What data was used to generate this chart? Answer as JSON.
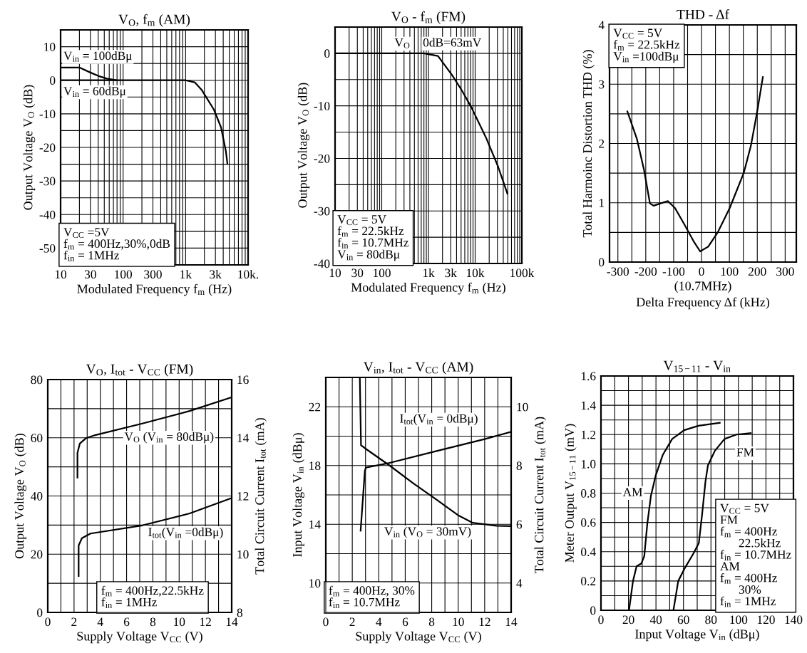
{
  "chart_data": [
    {
      "type": "line",
      "title": "V$_{O}$, f$_{m}$ (AM)",
      "xlabel": "Modulated Frequency f$_{m}$ (Hz)",
      "ylabel": "Output Voltage V$_{O}$ (dB)",
      "log": "x",
      "grid": true,
      "xlim": [
        10,
        10000
      ],
      "ylim": [
        -55,
        15
      ],
      "xticks": [
        {
          "value": 10,
          "label": "10"
        },
        {
          "value": 20,
          "label": null
        },
        {
          "value": 30,
          "label": "30"
        },
        {
          "value": 40,
          "label": null
        },
        {
          "value": 50,
          "label": null
        },
        {
          "value": 60,
          "label": null
        },
        {
          "value": 70,
          "label": null
        },
        {
          "value": 80,
          "label": null
        },
        {
          "value": 90,
          "label": null
        },
        {
          "value": 100,
          "label": "100"
        },
        {
          "value": 200,
          "label": null
        },
        {
          "value": 300,
          "label": "300"
        },
        {
          "value": 400,
          "label": null
        },
        {
          "value": 500,
          "label": null
        },
        {
          "value": 600,
          "label": null
        },
        {
          "value": 700,
          "label": null
        },
        {
          "value": 800,
          "label": null
        },
        {
          "value": 900,
          "label": null
        },
        {
          "value": 1000,
          "label": "1k"
        },
        {
          "value": 2000,
          "label": null
        },
        {
          "value": 3000,
          "label": "3k"
        },
        {
          "value": 4000,
          "label": null
        },
        {
          "value": 5000,
          "label": null
        },
        {
          "value": 6000,
          "label": null
        },
        {
          "value": 7000,
          "label": null
        },
        {
          "value": 8000,
          "label": null
        },
        {
          "value": 9000,
          "label": null
        },
        {
          "value": 10000,
          "label": "10k."
        }
      ],
      "yticks": [
        {
          "value": -50,
          "label": "-50"
        },
        {
          "value": -45,
          "label": null
        },
        {
          "value": -40,
          "label": "-40"
        },
        {
          "value": -35,
          "label": null
        },
        {
          "value": -30,
          "label": "-30"
        },
        {
          "value": -25,
          "label": null
        },
        {
          "value": -20,
          "label": "-20"
        },
        {
          "value": -15,
          "label": null
        },
        {
          "value": -10,
          "label": "-10"
        },
        {
          "value": -5,
          "label": null
        },
        {
          "value": 0,
          "label": "0"
        },
        {
          "value": 5,
          "label": null
        },
        {
          "value": 10,
          "label": "10"
        }
      ],
      "series": [
        {
          "name": "V$_{in}$ = 100dBμ",
          "color": "#000000",
          "x": [
            10,
            20,
            30,
            40,
            55,
            78
          ],
          "values": [
            3.8,
            3.8,
            2.3,
            1.3,
            0.5,
            0
          ]
        },
        {
          "name": "V$_{in}$ = 60dBμ",
          "color": "#000000",
          "x": [
            10,
            1000,
            1400,
            1828,
            2830,
            3690,
            4400,
            4670
          ],
          "values": [
            0,
            0,
            -0.6,
            -3,
            -8.7,
            -14,
            -21,
            -24.9
          ]
        }
      ],
      "annotations": [
        "V$_{CC}$ =5V\nf$_{m}$ = 400Hz,30%,0dB\nf$_{in}$ = 1MHz"
      ]
    },
    {
      "type": "line",
      "title": "V$_{O}$ - f$_{m}$ (FM)",
      "xlabel": "Modulated Frequency f$_{m}$ (Hz)",
      "ylabel": "Output Voltage V$_{O}$ (dB)",
      "log": "x",
      "grid": true,
      "xlim": [
        10,
        100000
      ],
      "ylim": [
        -40,
        5
      ],
      "xticks": [
        {
          "value": 10,
          "label": "10"
        },
        {
          "value": 20,
          "label": null
        },
        {
          "value": 30,
          "label": "30"
        },
        {
          "value": 40,
          "label": null
        },
        {
          "value": 50,
          "label": null
        },
        {
          "value": 60,
          "label": null
        },
        {
          "value": 70,
          "label": null
        },
        {
          "value": 80,
          "label": null
        },
        {
          "value": 90,
          "label": null
        },
        {
          "value": 100,
          "label": "100"
        },
        {
          "value": 200,
          "label": null
        },
        {
          "value": 300,
          "label": null
        },
        {
          "value": 400,
          "label": null
        },
        {
          "value": 500,
          "label": null
        },
        {
          "value": 600,
          "label": null
        },
        {
          "value": 700,
          "label": null
        },
        {
          "value": 800,
          "label": null
        },
        {
          "value": 900,
          "label": null
        },
        {
          "value": 1000,
          "label": "1k"
        },
        {
          "value": 2000,
          "label": null
        },
        {
          "value": 3000,
          "label": "3k"
        },
        {
          "value": 4000,
          "label": null
        },
        {
          "value": 5000,
          "label": null
        },
        {
          "value": 6000,
          "label": null
        },
        {
          "value": 7000,
          "label": null
        },
        {
          "value": 8000,
          "label": null
        },
        {
          "value": 9000,
          "label": null
        },
        {
          "value": 10000,
          "label": "10k"
        },
        {
          "value": 20000,
          "label": null
        },
        {
          "value": 30000,
          "label": null
        },
        {
          "value": 40000,
          "label": null
        },
        {
          "value": 50000,
          "label": null
        },
        {
          "value": 60000,
          "label": null
        },
        {
          "value": 70000,
          "label": null
        },
        {
          "value": 80000,
          "label": null
        },
        {
          "value": 90000,
          "label": null
        },
        {
          "value": 100000,
          "label": "100k"
        }
      ],
      "yticks": [
        {
          "value": -40,
          "label": "-40"
        },
        {
          "value": -35,
          "label": null
        },
        {
          "value": -30,
          "label": "-30"
        },
        {
          "value": -25,
          "label": null
        },
        {
          "value": -20,
          "label": "-20"
        },
        {
          "value": -15,
          "label": null
        },
        {
          "value": -10,
          "label": "-10"
        },
        {
          "value": -5,
          "label": null
        },
        {
          "value": 0,
          "label": "0"
        }
      ],
      "series": [
        {
          "name": "V$_{O}$",
          "color": "#000000",
          "x": [
            10,
            790,
            1600,
            3240,
            5220,
            8330,
            17000,
            30800,
            49000
          ],
          "values": [
            0,
            0,
            -0.5,
            -4.2,
            -7.1,
            -10.3,
            -16,
            -21.5,
            -26.7
          ]
        }
      ],
      "annotations": [
        "0dB=63mV",
        "V$_{CC}$ = 5V\nf$_{m}$ = 22.5kHz\nf$_{in}$ = 10.7MHz\nV$_{in}$ = 80dBμ"
      ]
    },
    {
      "type": "line",
      "title": "THD - Δf",
      "xlabel": "(10.7MHz)\nDelta Frequency Δf (kHz)",
      "ylabel": "Total Harmoinc Distortion THD (%)",
      "grid": true,
      "xlim": [
        -330,
        340
      ],
      "ylim": [
        0,
        4
      ],
      "xticks": [
        {
          "value": -300,
          "label": "-300"
        },
        {
          "value": -250,
          "label": null
        },
        {
          "value": -200,
          "label": "-200"
        },
        {
          "value": -150,
          "label": null
        },
        {
          "value": -100,
          "label": "-100"
        },
        {
          "value": -50,
          "label": null
        },
        {
          "value": 0,
          "label": "0"
        },
        {
          "value": 50,
          "label": null
        },
        {
          "value": 100,
          "label": "100"
        },
        {
          "value": 150,
          "label": null
        },
        {
          "value": 200,
          "label": "200"
        },
        {
          "value": 250,
          "label": null
        },
        {
          "value": 300,
          "label": "300"
        }
      ],
      "yticks": [
        {
          "value": 0,
          "label": "0"
        },
        {
          "value": 0.5,
          "label": null
        },
        {
          "value": 1,
          "label": "1"
        },
        {
          "value": 1.5,
          "label": null
        },
        {
          "value": 2,
          "label": "2"
        },
        {
          "value": 2.5,
          "label": null
        },
        {
          "value": 3,
          "label": "3"
        },
        {
          "value": 3.5,
          "label": null
        },
        {
          "value": 4,
          "label": "4"
        }
      ],
      "series": [
        {
          "color": "#000000",
          "x": [
            -266,
            -232,
            -206,
            -185,
            -172,
            -147,
            -121,
            -95,
            -61,
            -27,
            -5,
            24,
            58,
            101,
            152,
            177,
            199,
            220
          ],
          "values": [
            2.54,
            2.08,
            1.55,
            0.99,
            0.95,
            0.99,
            1.03,
            0.91,
            0.63,
            0.34,
            0.18,
            0.26,
            0.5,
            0.91,
            1.51,
            1.96,
            2.52,
            3.12
          ]
        }
      ],
      "annotations": [
        "V$_{CC}$ = 5V\nf$_{m}$ = 22.5kHz\nV$_{in}$ =100dBμ"
      ]
    },
    {
      "type": "line",
      "title": "V$_{O}$, I$_{tot}$ - V$_{CC}$ (FM)",
      "xlabel": "Supply Voltage V$_{CC}$ (V)",
      "ylabel": "Output Voltage V$_{O}$ (dB)",
      "y2label": "Total Circuit Current I$_{tot}$ (mA)",
      "grid": true,
      "xlim": [
        0,
        14
      ],
      "ylim": [
        0,
        80
      ],
      "y2lim": [
        8,
        16
      ],
      "xticks": [
        0,
        {
          "value": 1,
          "label": null
        },
        2,
        {
          "value": 3,
          "label": null
        },
        4,
        {
          "value": 5,
          "label": null
        },
        6,
        {
          "value": 7,
          "label": null
        },
        8,
        {
          "value": 9,
          "label": null
        },
        10,
        {
          "value": 11,
          "label": null
        },
        12,
        {
          "value": 13,
          "label": null
        },
        14
      ],
      "yticks": [
        0,
        {
          "value": 10,
          "label": null
        },
        20,
        {
          "value": 30,
          "label": null
        },
        40,
        {
          "value": 50,
          "label": null
        },
        60,
        {
          "value": 70,
          "label": null
        },
        80
      ],
      "y2ticks": [
        8,
        10,
        12,
        14,
        16
      ],
      "series": [
        {
          "name": "V$_{O}$ (V$_{in}$ = 80dBμ)",
          "color": "#000000",
          "x": [
            2.26,
            2.26,
            2.44,
            2.89,
            3.6,
            7.2,
            10.8,
            14
          ],
          "values": [
            46.3,
            54.8,
            58,
            59.8,
            60.9,
            64.9,
            69.2,
            73.9
          ]
        },
        {
          "name": "I$_{tot}$(V$_{in}$ =0dBμ)",
          "color": "#000000",
          "axis": "y2",
          "x": [
            2.35,
            2.35,
            2.6,
            3.25,
            7.2,
            10.8,
            14
          ],
          "values": [
            9.25,
            10.3,
            10.55,
            10.71,
            10.99,
            11.4,
            11.93
          ]
        }
      ],
      "annotations": [
        "f$_{m}$ = 400Hz,22.5kHz\nf$_{in}$ = 1MHz"
      ]
    },
    {
      "type": "line",
      "title": "V$_{in}$, I$_{tot}$ - V$_{CC}$ (AM)",
      "xlabel": "Supply Voltage V$_{CC}$ (V)",
      "ylabel": "Input Voltage V$_{in}$ (dBμ)",
      "y2label": "Total Circuit Current I$_{tot}$ (mA)",
      "grid": true,
      "xlim": [
        0,
        14
      ],
      "ylim": [
        8,
        24
      ],
      "y2lim": [
        3,
        11
      ],
      "xticks": [
        0,
        {
          "value": 1,
          "label": null
        },
        2,
        {
          "value": 3,
          "label": null
        },
        4,
        {
          "value": 5,
          "label": null
        },
        6,
        {
          "value": 7,
          "label": null
        },
        8,
        {
          "value": 9,
          "label": null
        },
        10,
        {
          "value": 11,
          "label": null
        },
        12,
        {
          "value": 13,
          "label": null
        },
        14
      ],
      "yticks": [
        10,
        {
          "value": 12,
          "label": null
        },
        14,
        {
          "value": 16,
          "label": null
        },
        18,
        {
          "value": 20,
          "label": null
        },
        22
      ],
      "y2ticks": [
        4,
        6,
        8,
        10
      ],
      "series": [
        {
          "name": "I$_{tot}$(V$_{in}$ = 0dBμ)",
          "color": "#000000",
          "axis": "y2",
          "x": [
            2.63,
            2.95,
            3.02,
            4.82,
            8.42,
            12,
            14
          ],
          "values": [
            5.78,
            7.81,
            7.93,
            8.09,
            8.5,
            8.9,
            9.15
          ]
        },
        {
          "name": "V$_{in}$ (V$_{O}$ = 30mV)",
          "color": "#000000",
          "x": [
            2.57,
            2.66,
            3.02,
            4.82,
            6.62,
            8.42,
            10.04,
            11.1,
            12.9,
            14
          ],
          "values": [
            24,
            19.38,
            19.14,
            18,
            16.78,
            15.64,
            14.59,
            14.1,
            13.9,
            13.87
          ]
        }
      ],
      "annotations": [
        "f$_{m}$ = 400Hz, 30%\nf$_{in}$ = 10.7MHz"
      ]
    },
    {
      "type": "line",
      "title": "V$_{15−11}$ - V$_{in}$",
      "xlabel": "Input Voltage V$_{in}$ (dBμ)",
      "ylabel": "Meter Output V$_{15−11}$ (mV)",
      "grid": true,
      "xlim": [
        0,
        140
      ],
      "ylim": [
        0,
        1.6
      ],
      "xticks": [
        0,
        {
          "value": 10,
          "label": null
        },
        20,
        {
          "value": 30,
          "label": null
        },
        40,
        {
          "value": 50,
          "label": null
        },
        60,
        {
          "value": 70,
          "label": null
        },
        80,
        {
          "value": 90,
          "label": null
        },
        100,
        {
          "value": 110,
          "label": null
        },
        120,
        {
          "value": 130,
          "label": null
        },
        140
      ],
      "yticks": [
        0,
        {
          "value": 0.1,
          "label": null
        },
        0.2,
        {
          "value": 0.3,
          "label": null
        },
        0.4,
        {
          "value": 0.5,
          "label": null
        },
        0.6,
        {
          "value": 0.7,
          "label": null
        },
        0.8,
        {
          "value": 0.9,
          "label": null
        },
        {
          "value": 1.0,
          "label": "1.0"
        },
        {
          "value": 1.1,
          "label": null
        },
        1.2,
        {
          "value": 1.3,
          "label": null
        },
        1.4,
        {
          "value": 1.5,
          "label": null
        },
        1.6
      ],
      "series": [
        {
          "name": "AM",
          "color": "#000000",
          "x": [
            20.4,
            23.3,
            25.9,
            29.4,
            31.5,
            33.7,
            36.3,
            39.8,
            44.9,
            51.8,
            60.5,
            70.9,
            86.4
          ],
          "values": [
            0,
            0.2,
            0.3,
            0.32,
            0.37,
            0.59,
            0.78,
            0.92,
            1.06,
            1.17,
            1.23,
            1.26,
            1.28
          ]
        },
        {
          "name": "FM",
          "color": "#000000",
          "x": [
            52.7,
            56.2,
            60.5,
            67.4,
            71.2,
            73.5,
            76,
            77.8,
            82.9,
            89.9,
            98.5,
            108.9
          ],
          "values": [
            0,
            0.2,
            0.28,
            0.39,
            0.46,
            0.65,
            0.88,
            0.99,
            1.09,
            1.17,
            1.2,
            1.21
          ]
        }
      ],
      "annotations": [
        "V$_{CC}$ = 5V\nFM\nf$_{m}$ = 400Hz\n      22.5kHz\nf$_{in}$ = 10.7MHz\nAM\nf$_{m}$ = 400Hz\n      30%\nf$_{in}$ = 1MHz"
      ]
    }
  ]
}
